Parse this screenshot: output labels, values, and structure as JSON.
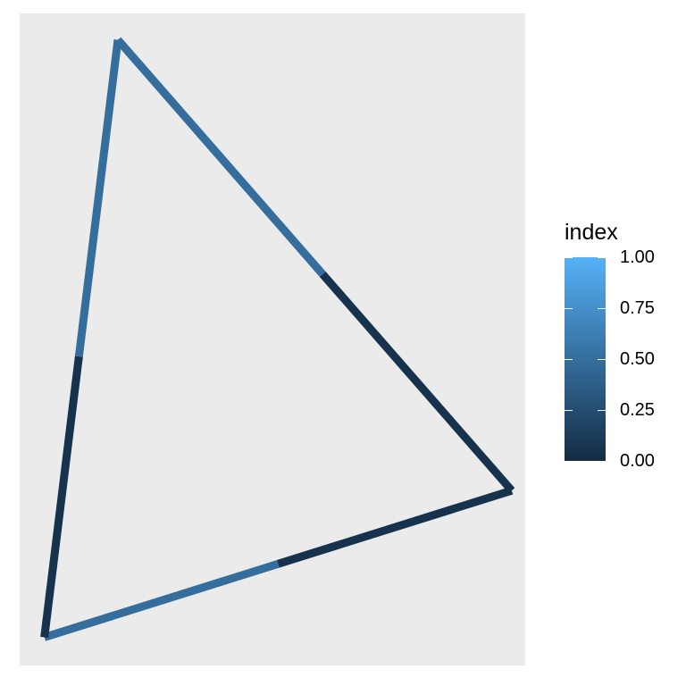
{
  "chart_data": {
    "type": "line",
    "title": "",
    "xlabel": "",
    "ylabel": "",
    "grid": false,
    "legend_placement": "right",
    "legend": {
      "title": "index",
      "breaks": [
        0.0,
        0.25,
        0.5,
        0.75,
        1.0
      ],
      "labels": [
        "0.00",
        "0.25",
        "0.50",
        "0.75",
        "1.00"
      ],
      "colormap": {
        "low": "#132B43",
        "high": "#56B1F7"
      }
    },
    "vertices": [
      {
        "x": 0.1943,
        "y": 0.9595
      },
      {
        "x": 0.9733,
        "y": 0.2682
      },
      {
        "x": 0.0489,
        "y": 0.0432
      }
    ],
    "edges": [
      {
        "from": 0,
        "to": 1,
        "segments": [
          {
            "t0": 0.0,
            "t1": 0.52,
            "index": 0.5
          },
          {
            "t0": 0.52,
            "t1": 1.0,
            "index": 0.05
          }
        ]
      },
      {
        "from": 1,
        "to": 2,
        "segments": [
          {
            "t0": 0.0,
            "t1": 0.5,
            "index": 0.05
          },
          {
            "t0": 0.5,
            "t1": 1.0,
            "index": 0.5
          }
        ]
      },
      {
        "from": 2,
        "to": 0,
        "segments": [
          {
            "t0": 0.0,
            "t1": 0.47,
            "index": 0.05
          },
          {
            "t0": 0.47,
            "t1": 1.0,
            "index": 0.5
          }
        ]
      }
    ]
  }
}
